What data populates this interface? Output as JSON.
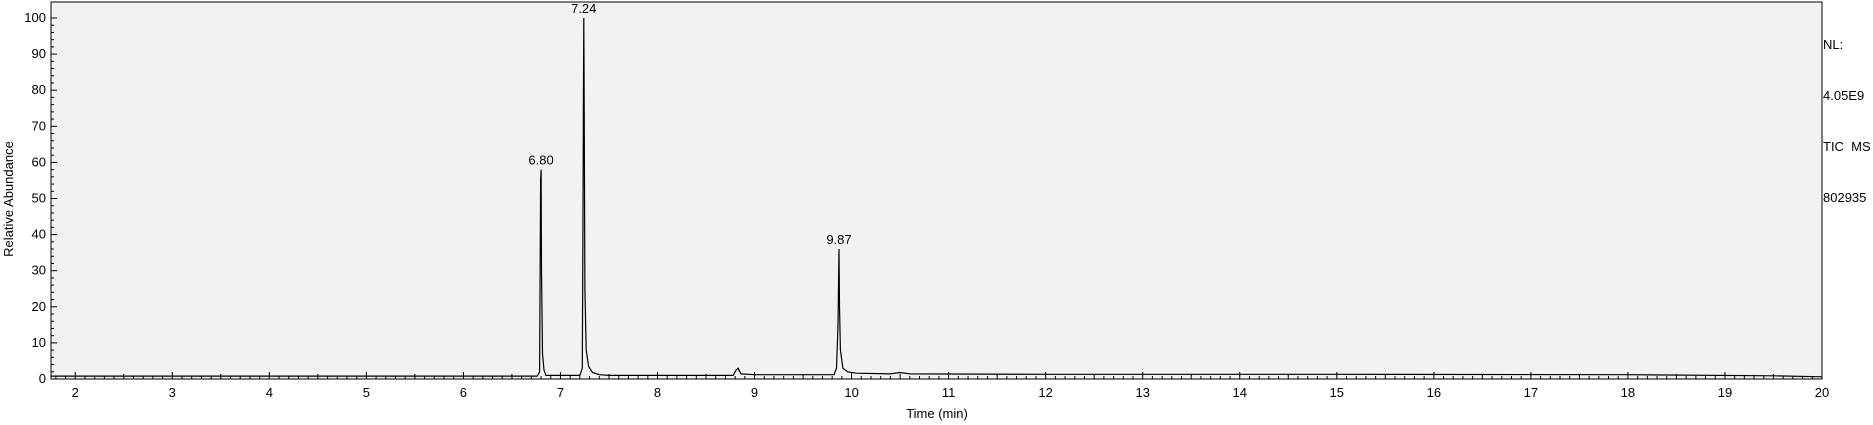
{
  "chart_data": {
    "type": "line",
    "ylabel": "Relative Abundance",
    "xlabel": "Time (min)",
    "xlim": [
      1.75,
      20.0
    ],
    "ylim": [
      0,
      100
    ],
    "x_ticks": [
      "2",
      "3",
      "4",
      "5",
      "6",
      "7",
      "8",
      "9",
      "10",
      "11",
      "12",
      "13",
      "14",
      "15",
      "16",
      "17",
      "18",
      "19",
      "20"
    ],
    "y_ticks": [
      "0",
      "10",
      "20",
      "30",
      "40",
      "50",
      "60",
      "70",
      "80",
      "90",
      "100"
    ],
    "grid": false,
    "background": "#f2f2f2",
    "line_color": "#000000",
    "peak_labels": [
      {
        "x": 6.8,
        "y": 58,
        "label": "6.80"
      },
      {
        "x": 7.24,
        "y": 100,
        "label": "7.24"
      },
      {
        "x": 9.87,
        "y": 36,
        "label": "9.87"
      }
    ],
    "series": [
      {
        "points": [
          [
            1.75,
            0.8
          ],
          [
            6.76,
            0.8
          ],
          [
            6.785,
            2
          ],
          [
            6.795,
            55
          ],
          [
            6.8,
            58
          ],
          [
            6.805,
            30
          ],
          [
            6.815,
            7
          ],
          [
            6.83,
            2.5
          ],
          [
            6.85,
            1.0
          ],
          [
            7.2,
            1.0
          ],
          [
            7.225,
            3
          ],
          [
            7.232,
            45
          ],
          [
            7.236,
            77
          ],
          [
            7.24,
            100
          ],
          [
            7.245,
            75
          ],
          [
            7.252,
            25
          ],
          [
            7.265,
            8
          ],
          [
            7.29,
            3.5
          ],
          [
            7.33,
            1.8
          ],
          [
            7.4,
            1.2
          ],
          [
            7.5,
            1.0
          ],
          [
            8.78,
            1.0
          ],
          [
            8.81,
            2.5
          ],
          [
            8.83,
            3
          ],
          [
            8.86,
            1.4
          ],
          [
            9.0,
            1.2
          ],
          [
            9.82,
            1.2
          ],
          [
            9.845,
            3
          ],
          [
            9.86,
            15
          ],
          [
            9.87,
            36
          ],
          [
            9.875,
            20
          ],
          [
            9.885,
            8
          ],
          [
            9.91,
            3
          ],
          [
            9.96,
            2.0
          ],
          [
            10.05,
            1.6
          ],
          [
            10.4,
            1.4
          ],
          [
            10.5,
            1.8
          ],
          [
            10.6,
            1.4
          ],
          [
            12.0,
            1.3
          ],
          [
            15.0,
            1.3
          ],
          [
            18.0,
            1.2
          ],
          [
            19.5,
            0.9
          ],
          [
            20.0,
            0.6
          ]
        ]
      }
    ]
  },
  "side_info": {
    "lines": [
      "NL:",
      "4.05E9",
      "TIC  MS",
      "802935"
    ]
  }
}
